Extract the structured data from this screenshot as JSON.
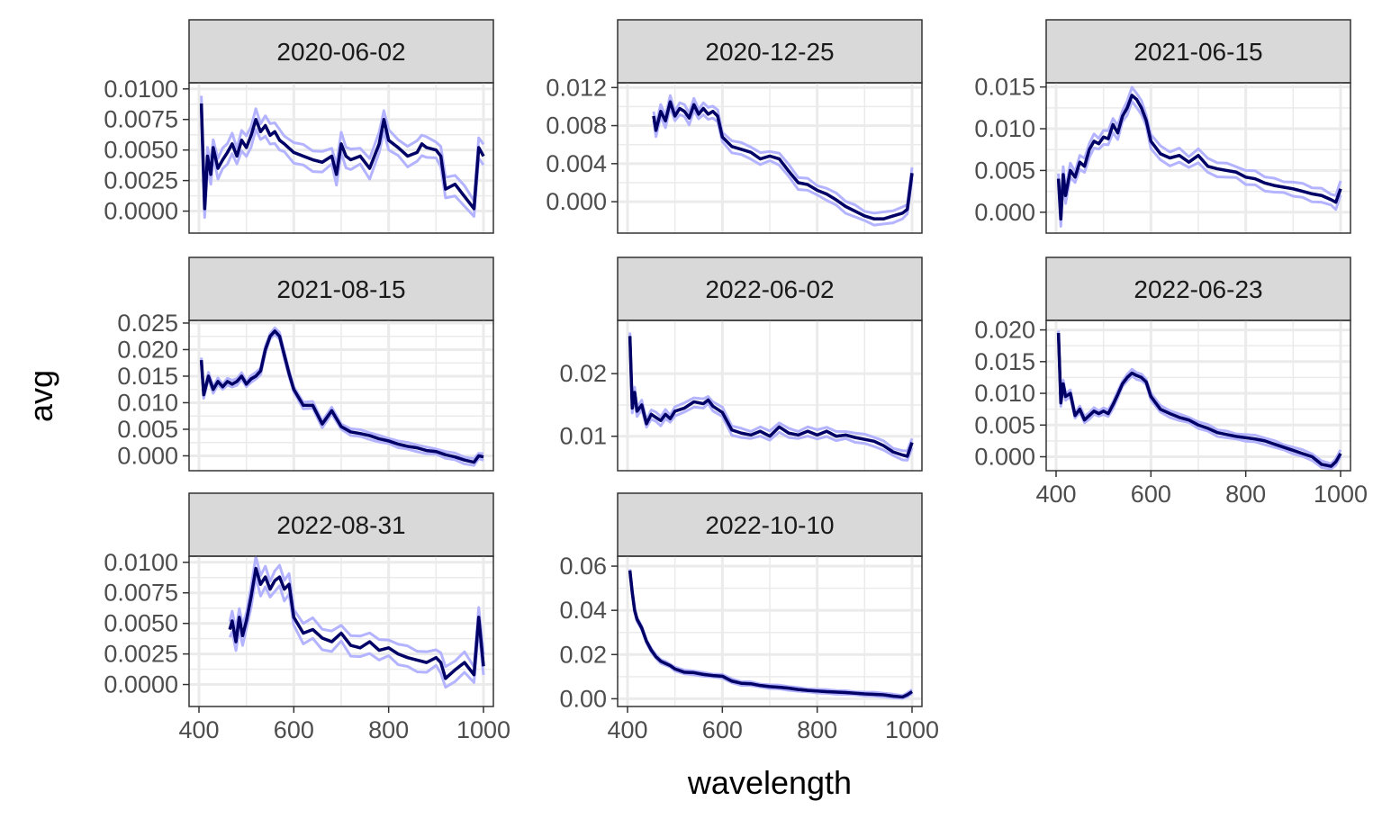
{
  "chart_data": {
    "type": "line",
    "layout": "facet-wrap",
    "xlabel": "wavelength",
    "ylabel": "avg",
    "xlim": [
      400,
      1000
    ],
    "x_ticks": [
      "400",
      "600",
      "800",
      "1000"
    ],
    "grid": true,
    "colors": {
      "mean_line": "#000000",
      "mean_series": "#000066",
      "ribbon_line": "#b3b3ff",
      "strip_fill": "#d9d9d9",
      "grid": "#ebebeb"
    },
    "panels": [
      {
        "title": "2020-06-02",
        "y_range": [
          -0.0018,
          0.0105
        ],
        "y_ticks": [
          0.0,
          0.0025,
          0.005,
          0.0075,
          0.01
        ],
        "y_tick_labels": [
          "0.0000",
          "0.0025",
          "0.0050",
          "0.0075",
          "0.0100"
        ],
        "band": 0.0008,
        "x": [
          405,
          408,
          412,
          418,
          425,
          430,
          440,
          450,
          460,
          470,
          480,
          490,
          500,
          510,
          520,
          530,
          540,
          550,
          560,
          570,
          580,
          600,
          620,
          640,
          660,
          680,
          690,
          700,
          710,
          720,
          740,
          760,
          780,
          790,
          800,
          820,
          840,
          860,
          870,
          880,
          900,
          910,
          920,
          940,
          960,
          980,
          990,
          1000
        ],
        "y": [
          0.0088,
          0.005,
          0.0002,
          0.0045,
          0.003,
          0.0052,
          0.0035,
          0.0042,
          0.0048,
          0.0055,
          0.0045,
          0.0058,
          0.0052,
          0.0062,
          0.0075,
          0.0065,
          0.007,
          0.0062,
          0.0065,
          0.0058,
          0.0055,
          0.0048,
          0.0045,
          0.0042,
          0.004,
          0.0045,
          0.003,
          0.0055,
          0.0045,
          0.0042,
          0.0045,
          0.0035,
          0.0055,
          0.0075,
          0.0058,
          0.0052,
          0.0045,
          0.0048,
          0.0055,
          0.0052,
          0.005,
          0.0045,
          0.0018,
          0.0022,
          0.0012,
          0.0002,
          0.0052,
          0.0045
        ]
      },
      {
        "title": "2020-12-25",
        "y_range": [
          -0.0033,
          0.0125
        ],
        "y_ticks": [
          0.0,
          0.004,
          0.008,
          0.012
        ],
        "y_tick_labels": [
          "0.000",
          "0.004",
          "0.008",
          "0.012"
        ],
        "band": 0.0006,
        "x": [
          455,
          460,
          470,
          480,
          490,
          500,
          510,
          520,
          530,
          540,
          550,
          560,
          570,
          580,
          590,
          600,
          620,
          640,
          660,
          680,
          700,
          720,
          740,
          760,
          780,
          800,
          820,
          840,
          860,
          880,
          900,
          920,
          940,
          960,
          980,
          990,
          1000
        ],
        "y": [
          0.009,
          0.0075,
          0.0095,
          0.0085,
          0.0105,
          0.009,
          0.0098,
          0.0095,
          0.0088,
          0.0102,
          0.0092,
          0.0098,
          0.0092,
          0.0095,
          0.009,
          0.0068,
          0.0058,
          0.0055,
          0.0052,
          0.0045,
          0.0048,
          0.0045,
          0.0032,
          0.002,
          0.0018,
          0.0012,
          0.0008,
          0.0002,
          -0.0005,
          -0.001,
          -0.0015,
          -0.0018,
          -0.0018,
          -0.0015,
          -0.0012,
          -0.0008,
          0.003
        ]
      },
      {
        "title": "2021-06-15",
        "y_range": [
          -0.0025,
          0.0155
        ],
        "y_ticks": [
          0.0,
          0.005,
          0.01,
          0.015
        ],
        "y_tick_labels": [
          "0.000",
          "0.005",
          "0.010",
          "0.015"
        ],
        "band": 0.0008,
        "x": [
          405,
          410,
          415,
          420,
          430,
          440,
          450,
          460,
          470,
          480,
          490,
          500,
          510,
          520,
          530,
          540,
          550,
          560,
          570,
          580,
          590,
          600,
          620,
          640,
          660,
          680,
          700,
          720,
          740,
          760,
          780,
          800,
          820,
          840,
          860,
          880,
          900,
          920,
          940,
          960,
          980,
          990,
          1000
        ],
        "y": [
          0.004,
          -0.0008,
          0.0045,
          0.002,
          0.005,
          0.0042,
          0.006,
          0.0055,
          0.0075,
          0.0085,
          0.0082,
          0.009,
          0.0088,
          0.0105,
          0.0095,
          0.0115,
          0.0125,
          0.014,
          0.0135,
          0.0125,
          0.011,
          0.0085,
          0.007,
          0.0065,
          0.0068,
          0.006,
          0.0068,
          0.0055,
          0.0052,
          0.005,
          0.0048,
          0.0042,
          0.004,
          0.0035,
          0.0032,
          0.003,
          0.0028,
          0.0025,
          0.0022,
          0.002,
          0.0015,
          0.0012,
          0.0028
        ]
      },
      {
        "title": "2021-08-15",
        "y_range": [
          -0.0028,
          0.0255
        ],
        "y_ticks": [
          0.0,
          0.005,
          0.01,
          0.015,
          0.02,
          0.025
        ],
        "y_tick_labels": [
          "0.000",
          "0.005",
          "0.010",
          "0.015",
          "0.020",
          "0.025"
        ],
        "band": 0.0006,
        "x": [
          405,
          410,
          420,
          430,
          440,
          450,
          460,
          470,
          480,
          490,
          500,
          510,
          520,
          530,
          540,
          550,
          560,
          570,
          580,
          590,
          600,
          620,
          640,
          660,
          680,
          700,
          720,
          740,
          760,
          780,
          800,
          820,
          840,
          860,
          880,
          900,
          920,
          940,
          960,
          980,
          990,
          1000
        ],
        "y": [
          0.018,
          0.0115,
          0.015,
          0.0125,
          0.014,
          0.013,
          0.014,
          0.0135,
          0.014,
          0.015,
          0.0135,
          0.0145,
          0.015,
          0.016,
          0.02,
          0.0225,
          0.0235,
          0.0225,
          0.019,
          0.0155,
          0.0125,
          0.0095,
          0.0095,
          0.006,
          0.0085,
          0.0055,
          0.0045,
          0.0042,
          0.0038,
          0.0032,
          0.0028,
          0.0022,
          0.0018,
          0.0015,
          0.001,
          0.0008,
          0.0002,
          -0.0002,
          -0.0008,
          -0.0012,
          0.0,
          -0.0002
        ]
      },
      {
        "title": "2022-06-02",
        "y_range": [
          0.0045,
          0.0285
        ],
        "y_ticks": [
          0.01,
          0.02
        ],
        "y_tick_labels": [
          "0.01",
          "0.02"
        ],
        "band": 0.0007,
        "x": [
          405,
          410,
          415,
          420,
          430,
          440,
          450,
          460,
          470,
          480,
          490,
          500,
          520,
          540,
          560,
          570,
          580,
          600,
          620,
          640,
          660,
          680,
          700,
          720,
          740,
          760,
          780,
          800,
          820,
          840,
          860,
          880,
          900,
          920,
          940,
          960,
          980,
          990,
          1000
        ],
        "y": [
          0.026,
          0.0145,
          0.017,
          0.014,
          0.015,
          0.012,
          0.0135,
          0.013,
          0.0125,
          0.0135,
          0.0128,
          0.014,
          0.0145,
          0.0155,
          0.0152,
          0.0158,
          0.0148,
          0.0138,
          0.011,
          0.0105,
          0.0102,
          0.0108,
          0.01,
          0.0115,
          0.0105,
          0.0102,
          0.0108,
          0.0102,
          0.0108,
          0.01,
          0.0102,
          0.0098,
          0.0095,
          0.0092,
          0.0085,
          0.0075,
          0.007,
          0.0068,
          0.009
        ]
      },
      {
        "title": "2022-06-23",
        "y_range": [
          -0.0022,
          0.0215
        ],
        "y_ticks": [
          0.0,
          0.005,
          0.01,
          0.015,
          0.02
        ],
        "y_tick_labels": [
          "0.000",
          "0.005",
          "0.010",
          "0.015",
          "0.020"
        ],
        "band": 0.0005,
        "x": [
          405,
          410,
          415,
          420,
          430,
          440,
          450,
          460,
          470,
          480,
          490,
          500,
          510,
          520,
          530,
          540,
          550,
          560,
          570,
          580,
          590,
          600,
          620,
          640,
          660,
          680,
          700,
          720,
          740,
          760,
          780,
          800,
          820,
          840,
          860,
          880,
          900,
          920,
          940,
          960,
          980,
          990,
          1000
        ],
        "y": [
          0.0195,
          0.0085,
          0.0115,
          0.0095,
          0.01,
          0.0065,
          0.0075,
          0.0058,
          0.0065,
          0.0072,
          0.0068,
          0.0072,
          0.0068,
          0.0082,
          0.0098,
          0.0115,
          0.0125,
          0.0132,
          0.0128,
          0.0125,
          0.0118,
          0.0095,
          0.0075,
          0.0068,
          0.0062,
          0.0058,
          0.005,
          0.0045,
          0.0038,
          0.0035,
          0.0032,
          0.003,
          0.0028,
          0.0025,
          0.002,
          0.0015,
          0.001,
          0.0005,
          0.0,
          -0.0012,
          -0.0015,
          -0.0008,
          0.0005
        ]
      },
      {
        "title": "2022-08-31",
        "y_range": [
          -0.0018,
          0.0105
        ],
        "y_ticks": [
          0.0,
          0.0025,
          0.005,
          0.0075,
          0.01
        ],
        "y_tick_labels": [
          "0.0000",
          "0.0025",
          "0.0050",
          "0.0075",
          "0.0100"
        ],
        "band": 0.0008,
        "x": [
          465,
          470,
          478,
          485,
          492,
          500,
          510,
          520,
          530,
          540,
          550,
          560,
          570,
          580,
          590,
          600,
          620,
          640,
          660,
          680,
          700,
          720,
          740,
          760,
          780,
          800,
          820,
          840,
          860,
          880,
          900,
          910,
          920,
          940,
          960,
          980,
          990,
          1000
        ],
        "y": [
          0.0045,
          0.0052,
          0.0035,
          0.0055,
          0.004,
          0.0052,
          0.0072,
          0.0095,
          0.0082,
          0.0088,
          0.0078,
          0.0085,
          0.0088,
          0.0078,
          0.0082,
          0.0055,
          0.0042,
          0.0045,
          0.0038,
          0.0035,
          0.0042,
          0.0032,
          0.003,
          0.0035,
          0.0028,
          0.003,
          0.0025,
          0.0022,
          0.002,
          0.0018,
          0.0022,
          0.0018,
          0.0005,
          0.0012,
          0.0018,
          0.0008,
          0.0055,
          0.0015
        ]
      },
      {
        "title": "2022-10-10",
        "y_range": [
          -0.0035,
          0.0645
        ],
        "y_ticks": [
          0.0,
          0.02,
          0.04,
          0.06
        ],
        "y_tick_labels": [
          "0.00",
          "0.02",
          "0.04",
          "0.06"
        ],
        "band": 0.0008,
        "x": [
          405,
          410,
          415,
          420,
          430,
          440,
          450,
          460,
          470,
          480,
          490,
          500,
          520,
          540,
          560,
          580,
          600,
          620,
          640,
          660,
          680,
          700,
          720,
          740,
          760,
          780,
          800,
          820,
          840,
          860,
          880,
          900,
          920,
          940,
          960,
          980,
          990,
          1000
        ],
        "y": [
          0.058,
          0.048,
          0.04,
          0.036,
          0.032,
          0.026,
          0.022,
          0.019,
          0.017,
          0.016,
          0.015,
          0.0135,
          0.012,
          0.0118,
          0.011,
          0.0105,
          0.0102,
          0.008,
          0.007,
          0.0068,
          0.006,
          0.0055,
          0.0052,
          0.0048,
          0.0042,
          0.0038,
          0.0035,
          0.0032,
          0.003,
          0.0028,
          0.0025,
          0.0022,
          0.002,
          0.0018,
          0.0012,
          0.0008,
          0.0018,
          0.0032
        ]
      }
    ]
  }
}
